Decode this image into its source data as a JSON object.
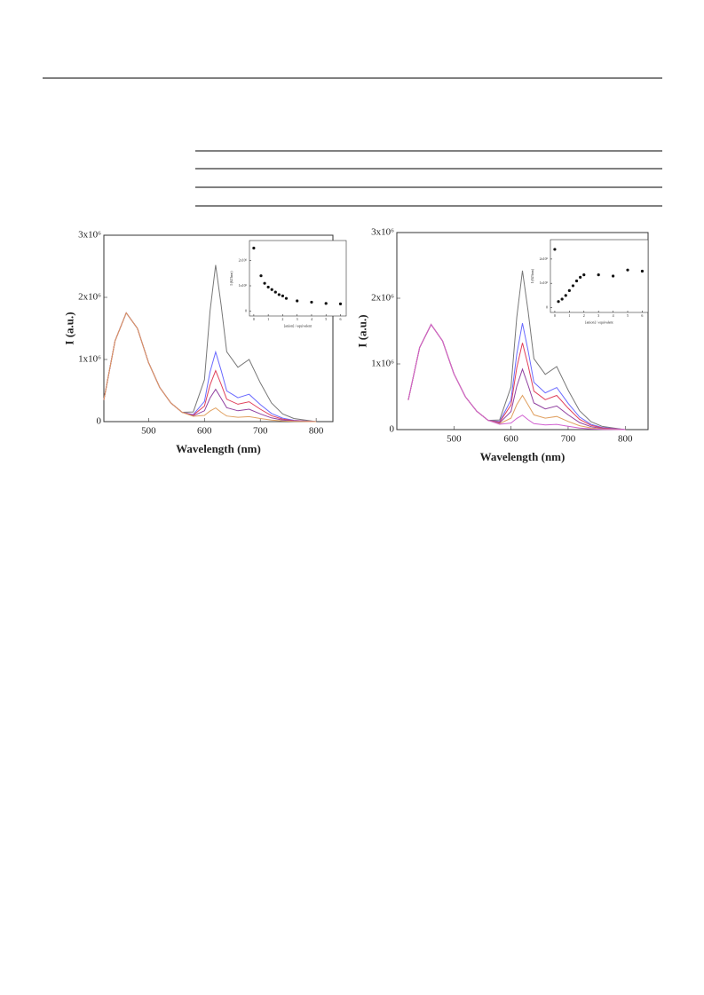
{
  "chart_data": [
    {
      "type": "line",
      "x_label": "Wavelength (nm)",
      "y_label": "I (a.u.)",
      "x": [
        420,
        440,
        460,
        480,
        500,
        520,
        540,
        560,
        580,
        600,
        610,
        620,
        630,
        640,
        660,
        680,
        700,
        720,
        740,
        760,
        780,
        800
      ],
      "xlim": [
        420,
        830
      ],
      "ylim": [
        0,
        3000000
      ],
      "xticks": [
        500,
        600,
        700,
        800
      ],
      "yticks": [
        0,
        {
          "value": 1000000,
          "label": "1x10⁶"
        },
        {
          "value": 2000000,
          "label": "2x10⁶"
        },
        {
          "value": 3000000,
          "label": "3x10⁶"
        }
      ],
      "series": [
        {
          "color": "#777777",
          "values": [
            350000,
            1300000,
            1750000,
            1500000,
            950000,
            550000,
            300000,
            150000,
            155000,
            675000,
            1780000,
            2520000,
            1875000,
            1125000,
            875000,
            1000000,
            625000,
            300000,
            125000,
            50000,
            25000,
            0
          ]
        },
        {
          "color": "#6a6aff",
          "values": [
            350000,
            1300000,
            1750000,
            1500000,
            950000,
            550000,
            300000,
            150000,
            113000,
            325000,
            800000,
            1120000,
            825000,
            495000,
            385000,
            440000,
            275000,
            132000,
            55000,
            22000,
            11000,
            0
          ]
        },
        {
          "color": "#e0405a",
          "values": [
            350000,
            1300000,
            1750000,
            1500000,
            950000,
            550000,
            300000,
            150000,
            104000,
            250000,
            590000,
            820000,
            600000,
            360000,
            280000,
            320000,
            200000,
            96000,
            40000,
            16000,
            8000,
            0
          ]
        },
        {
          "color": "#9040a0",
          "values": [
            350000,
            1300000,
            1750000,
            1500000,
            950000,
            550000,
            300000,
            150000,
            95000,
            175000,
            380000,
            520000,
            375000,
            225000,
            175000,
            200000,
            125000,
            60000,
            25000,
            10000,
            5000,
            0
          ]
        },
        {
          "color": "#e0a060",
          "values": [
            350000,
            1300000,
            1750000,
            1500000,
            950000,
            550000,
            300000,
            150000,
            86000,
            100000,
            170000,
            220000,
            150000,
            90000,
            70000,
            80000,
            50000,
            24000,
            10000,
            4000,
            2000,
            0
          ]
        }
      ]
    },
    {
      "type": "scatter",
      "x_label": "[anion] / equivalent",
      "y_label": "I (623nm)",
      "x": [
        0,
        0.5,
        0.75,
        1,
        1.25,
        1.5,
        1.75,
        2,
        2.25,
        3,
        4,
        5,
        6
      ],
      "values": [
        2500000,
        1400000,
        1100000,
        950000,
        850000,
        750000,
        650000,
        600000,
        500000,
        400000,
        350000,
        300000,
        280000
      ],
      "xlim": [
        -0.3,
        6.4
      ],
      "ylim": [
        -200000,
        2800000
      ],
      "xticks": [
        0,
        1,
        2,
        3,
        4,
        5,
        6
      ],
      "yticks": [
        0,
        {
          "value": 1000000,
          "label": "1x10⁶"
        },
        {
          "value": 2000000,
          "label": "2x10⁶"
        }
      ],
      "color": "#111111"
    },
    {
      "type": "line",
      "x_label": "Wavelength (nm)",
      "y_label": "I (a.u.)",
      "x": [
        420,
        440,
        460,
        480,
        500,
        520,
        540,
        560,
        580,
        600,
        610,
        620,
        630,
        640,
        660,
        680,
        700,
        720,
        740,
        760,
        780,
        800
      ],
      "xlim": [
        400,
        840
      ],
      "ylim": [
        0,
        3000000
      ],
      "xticks": [
        500,
        600,
        700,
        800
      ],
      "yticks": [
        0,
        {
          "value": 1000000,
          "label": "1x10⁶"
        },
        {
          "value": 2000000,
          "label": "2x10⁶"
        },
        {
          "value": 3000000,
          "label": "3x10⁶"
        }
      ],
      "series": [
        {
          "color": "#777777",
          "values": [
            450000,
            1250000,
            1600000,
            1350000,
            850000,
            500000,
            280000,
            140000,
            147000,
            650000,
            1710000,
            2420000,
            1800000,
            1080000,
            840000,
            960000,
            600000,
            288000,
            120000,
            48000,
            24000,
            0
          ]
        },
        {
          "color": "#6a6aff",
          "values": [
            450000,
            1250000,
            1600000,
            1350000,
            850000,
            500000,
            280000,
            140000,
            123000,
            450000,
            1150000,
            1620000,
            1200000,
            720000,
            560000,
            640000,
            400000,
            192000,
            80000,
            32000,
            16000,
            0
          ]
        },
        {
          "color": "#e0405a",
          "values": [
            450000,
            1250000,
            1600000,
            1350000,
            850000,
            500000,
            280000,
            140000,
            114000,
            375000,
            940000,
            1320000,
            975000,
            585000,
            455000,
            520000,
            325000,
            156000,
            65000,
            26000,
            13000,
            0
          ]
        },
        {
          "color": "#9040a0",
          "values": [
            450000,
            1250000,
            1600000,
            1350000,
            850000,
            500000,
            280000,
            140000,
            102000,
            275000,
            660000,
            920000,
            675000,
            405000,
            315000,
            360000,
            225000,
            108000,
            45000,
            18000,
            9000,
            0
          ]
        },
        {
          "color": "#e0a060",
          "values": [
            450000,
            1250000,
            1600000,
            1350000,
            850000,
            500000,
            280000,
            140000,
            90000,
            175000,
            380000,
            520000,
            375000,
            225000,
            175000,
            200000,
            125000,
            60000,
            25000,
            10000,
            5000,
            0
          ]
        },
        {
          "color": "#d060d0",
          "values": [
            450000,
            1250000,
            1600000,
            1350000,
            850000,
            500000,
            280000,
            140000,
            81000,
            100000,
            170000,
            220000,
            150000,
            90000,
            70000,
            80000,
            50000,
            24000,
            10000,
            4000,
            2000,
            0
          ]
        }
      ]
    },
    {
      "type": "scatter",
      "x_label": "[anion] / equivalent",
      "y_label": "I (623nm)",
      "x": [
        0,
        0.25,
        0.5,
        0.75,
        1,
        1.25,
        1.5,
        1.75,
        2,
        3,
        4,
        5,
        6
      ],
      "values": [
        2400000,
        250000,
        350000,
        500000,
        700000,
        900000,
        1100000,
        1250000,
        1350000,
        1350000,
        1300000,
        1550000,
        1500000
      ],
      "xlim": [
        -0.3,
        6.4
      ],
      "ylim": [
        -200000,
        2800000
      ],
      "xticks": [
        0,
        1,
        2,
        3,
        4,
        5,
        6
      ],
      "yticks": [
        0,
        {
          "value": 1000000,
          "label": "1x10⁶"
        },
        {
          "value": 2000000,
          "label": "2x10⁶"
        }
      ],
      "color": "#111111"
    }
  ]
}
